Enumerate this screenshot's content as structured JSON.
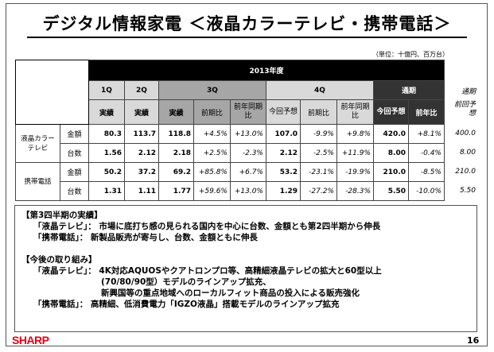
{
  "title": "デジタル情報家電 ＜液晶カラーテレビ・携帯電話＞",
  "unit": "（単位：十億円、百万台）",
  "header": {
    "year": "2013年度",
    "q1": "1Q",
    "q2": "2Q",
    "q3": "3Q",
    "q4": "4Q",
    "full": "通期",
    "actual": "実績",
    "qoq": "前期比",
    "yoy": "前年同期比",
    "forecast": "今回予想",
    "yoy_full": "前年比",
    "prev_full": "通期",
    "prev_forecast": "前回予想"
  },
  "rows": [
    {
      "group": "液晶カラーテレビ",
      "metric": "金額",
      "v": [
        "80.3",
        "113.7",
        "118.8",
        "+4.5%",
        "+13.0%",
        "107.0",
        "-9.9%",
        "+9.8%",
        "420.0",
        "+8.1%"
      ],
      "prev": "400.0"
    },
    {
      "group": "",
      "metric": "台数",
      "v": [
        "1.56",
        "2.12",
        "2.18",
        "+2.5%",
        "-2.3%",
        "2.12",
        "-2.5%",
        "+11.9%",
        "8.00",
        "-0.4%"
      ],
      "prev": "8.00"
    },
    {
      "group": "携帯電話",
      "metric": "金額",
      "v": [
        "50.2",
        "37.2",
        "69.2",
        "+85.8%",
        "+6.7%",
        "53.2",
        "-23.1%",
        "-19.9%",
        "210.0",
        "-8.5%"
      ],
      "prev": "210.0"
    },
    {
      "group": "",
      "metric": "台数",
      "v": [
        "1.31",
        "1.11",
        "1.77",
        "+59.6%",
        "+13.0%",
        "1.29",
        "-27.2%",
        "-28.3%",
        "5.50",
        "-10.0%"
      ],
      "prev": "5.50"
    }
  ],
  "notes": {
    "h1": "【第3四半期の実績】",
    "l1": "「液晶テレビ」： 市場に底打ち感の見られる国内を中心に台数、金額とも第2四半期から伸長",
    "l2": "「携帯電話」： 新製品販売が寄与し、台数、金額ともに伸長",
    "h2": "【今後の取り組み】",
    "l3": "「液晶テレビ」： 4K対応AQUOSやクアトロンプロ等、高精細液晶テレビの拡大と60型以上",
    "l4": "(70/80/90型）モデルのラインアップ拡充、",
    "l5": "新興国等の重点地域へのローカルフィット商品の投入による販売強化",
    "l6": "「携帯電話」： 高精細、低消費電力「IGZO液晶」搭載モデルのラインアップ拡充"
  },
  "logo": "SHARP",
  "page": "16"
}
